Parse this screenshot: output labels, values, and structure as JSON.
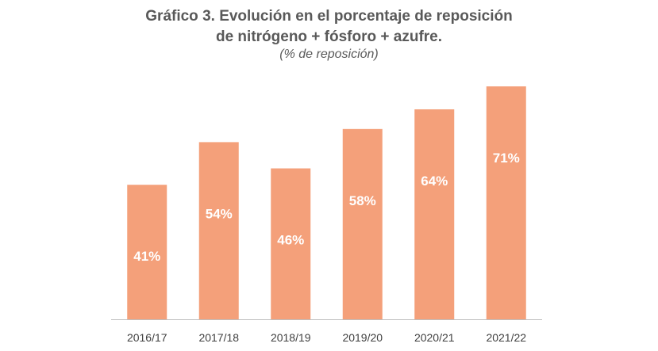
{
  "chart_data": {
    "type": "bar",
    "title_line1": "Gráfico 3. Evolución en el porcentaje de reposición",
    "title_line2": "de nitrógeno + fósforo + azufre.",
    "subtitle": "(% de reposición)",
    "categories": [
      "2016/17",
      "2017/18",
      "2018/19",
      "2019/20",
      "2020/21",
      "2021/22"
    ],
    "values": [
      41,
      54,
      46,
      58,
      64,
      71
    ],
    "value_labels": [
      "41%",
      "54%",
      "46%",
      "58%",
      "64%",
      "71%"
    ],
    "ylim": [
      0,
      71
    ],
    "grid": false,
    "bar_color": "#F4A07A",
    "axis_color": "#BFBFBF"
  }
}
